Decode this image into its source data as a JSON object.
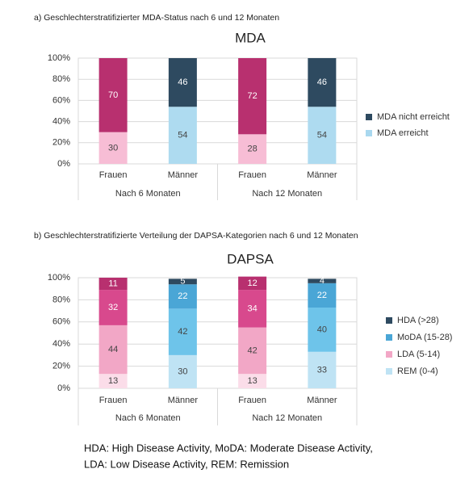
{
  "chart_data": [
    {
      "type": "stacked_bar",
      "caption": "a) Geschlechterstratifizierter MDA-Status nach 6 und 12 Monaten",
      "title": "MDA",
      "categories": [
        "Frauen",
        "Männer",
        "Frauen",
        "Männer"
      ],
      "groups": [
        "Nach 6 Monaten",
        "Nach 12 Monaten"
      ],
      "series": [
        {
          "name": "MDA erreicht",
          "color": "#a9d8ef",
          "colors": [
            "#f7bdd5",
            "#aedbf0",
            "#f7bdd5",
            "#aedbf0"
          ],
          "label_color": "#444444",
          "values": [
            30,
            54,
            28,
            54
          ]
        },
        {
          "name": "MDA nicht erreicht",
          "color": "#2e4a60",
          "colors": [
            "#b8306f",
            "#2e4a60",
            "#b8306f",
            "#2e4a60"
          ],
          "label_color": "#ffffff",
          "values": [
            70,
            46,
            72,
            46
          ]
        }
      ],
      "ylim": [
        0,
        100
      ],
      "yticks": [
        {
          "value": 0,
          "label": "0%"
        },
        {
          "value": 20,
          "label": "20%"
        },
        {
          "value": 40,
          "label": "40%"
        },
        {
          "value": 60,
          "label": "60%"
        },
        {
          "value": 80,
          "label": "80%"
        },
        {
          "value": 100,
          "label": "100%"
        }
      ],
      "grid": true,
      "legend": "right"
    },
    {
      "type": "stacked_bar",
      "caption": "b) Geschlechterstratifizierte Verteilung der DAPSA-Kategorien nach 6 und 12 Monaten",
      "title": "DAPSA",
      "categories": [
        "Frauen",
        "Männer",
        "Frauen",
        "Männer"
      ],
      "groups": [
        "Nach 6 Monaten",
        "Nach 12 Monaten"
      ],
      "series": [
        {
          "name": "REM (0-4)",
          "color": "#bfe3f4",
          "colors": [
            "#fbdde9",
            "#bfe3f4",
            "#fbdde9",
            "#bfe3f4"
          ],
          "label_color": "#444444",
          "values": [
            13,
            30,
            13,
            33
          ]
        },
        {
          "name": "LDA (5-14)",
          "color": "#f2a7c6",
          "colors": [
            "#f2a7c6",
            "#6ec4ea",
            "#f2a7c6",
            "#6ec4ea"
          ],
          "label_color": "#444444",
          "values": [
            44,
            42,
            42,
            40
          ]
        },
        {
          "name": "MoDA (15-28)",
          "color": "#4aa6d6",
          "colors": [
            "#d8498d",
            "#4aa6d6",
            "#d8498d",
            "#4aa6d6"
          ],
          "label_color": "#ffffff",
          "values": [
            32,
            22,
            34,
            22
          ]
        },
        {
          "name": "HDA (>28)",
          "color": "#2e4a60",
          "colors": [
            "#b8306f",
            "#2e4a60",
            "#b8306f",
            "#2e4a60"
          ],
          "label_color": "#ffffff",
          "values": [
            11,
            5,
            12,
            4
          ]
        }
      ],
      "ylim": [
        0,
        100
      ],
      "yticks": [
        {
          "value": 0,
          "label": "0%"
        },
        {
          "value": 20,
          "label": "20%"
        },
        {
          "value": 40,
          "label": "40%"
        },
        {
          "value": 60,
          "label": "60%"
        },
        {
          "value": 80,
          "label": "80%"
        },
        {
          "value": 100,
          "label": "100%"
        }
      ],
      "grid": true,
      "legend": "right"
    }
  ],
  "footnote": [
    "HDA: High Disease Activity, MoDA: Moderate Disease Activity,",
    "LDA: Low Disease Activity, REM: Remission"
  ]
}
